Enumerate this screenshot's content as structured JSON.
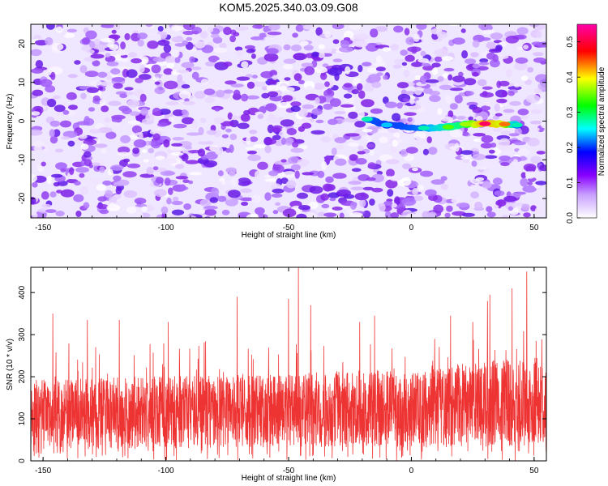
{
  "title": "KOM5.2025.340.03.09.G08",
  "chart_data": [
    {
      "type": "heatmap",
      "title": "KOM5.2025.340.03.09.G08",
      "xlabel": "Height of straight line (km)",
      "ylabel": "Frequency (Hz)",
      "xlim": [
        -155,
        55
      ],
      "ylim": [
        -25,
        25
      ],
      "x_ticks": [
        -150,
        -100,
        -50,
        0,
        50
      ],
      "y_ticks": [
        -20,
        -10,
        0,
        10,
        20
      ],
      "colorbar": {
        "label": "Normalized spectral amplitude",
        "range": [
          0.0,
          0.55
        ],
        "ticks": [
          0.0,
          0.1,
          0.2,
          0.3,
          0.4,
          0.5
        ],
        "colors": [
          "#ffffff",
          "#8800ff",
          "#0000ff",
          "#00ffff",
          "#00ff00",
          "#ffff00",
          "#ff0000",
          "#ff00aa"
        ]
      },
      "background_amplitude_range": [
        0.0,
        0.1
      ],
      "signal_ridge": {
        "points": [
          {
            "x": -18,
            "y": 0.5,
            "amp": 0.2
          },
          {
            "x": -10,
            "y": -1.0,
            "amp": 0.17
          },
          {
            "x": 5,
            "y": -1.8,
            "amp": 0.2
          },
          {
            "x": 15,
            "y": -1.5,
            "amp": 0.27
          },
          {
            "x": 22,
            "y": -0.8,
            "amp": 0.3
          },
          {
            "x": 30,
            "y": -0.7,
            "amp": 0.52
          },
          {
            "x": 38,
            "y": -0.8,
            "amp": 0.42
          },
          {
            "x": 43,
            "y": -1.0,
            "amp": 0.2
          }
        ]
      }
    },
    {
      "type": "line",
      "xlabel": "Height of straight line (km)",
      "ylabel": "SNR (10 * v/v)",
      "xlim": [
        -155,
        55
      ],
      "ylim": [
        0,
        460
      ],
      "x_ticks": [
        -150,
        -100,
        -50,
        0,
        50
      ],
      "y_ticks": [
        0,
        100,
        200,
        300,
        400
      ],
      "series": [
        {
          "name": "SNR",
          "color": "#ee3333",
          "baseline": [
            [
              -155,
              110
            ],
            [
              -100,
              115
            ],
            [
              -50,
              120
            ],
            [
              0,
              125
            ],
            [
              30,
              135
            ],
            [
              55,
              145
            ]
          ],
          "peaks": [
            {
              "x": -146,
              "y": 350
            },
            {
              "x": -132,
              "y": 335
            },
            {
              "x": -119,
              "y": 335
            },
            {
              "x": -99,
              "y": 330
            },
            {
              "x": -71,
              "y": 390
            },
            {
              "x": -50,
              "y": 385
            },
            {
              "x": -46,
              "y": 460
            },
            {
              "x": -41,
              "y": 370
            },
            {
              "x": -21,
              "y": 330
            },
            {
              "x": -15,
              "y": 345
            },
            {
              "x": 16,
              "y": 345
            },
            {
              "x": 25,
              "y": 330
            },
            {
              "x": 31,
              "y": 380
            },
            {
              "x": 32,
              "y": 395
            },
            {
              "x": 41,
              "y": 410
            },
            {
              "x": 47,
              "y": 450
            }
          ]
        }
      ]
    }
  ]
}
